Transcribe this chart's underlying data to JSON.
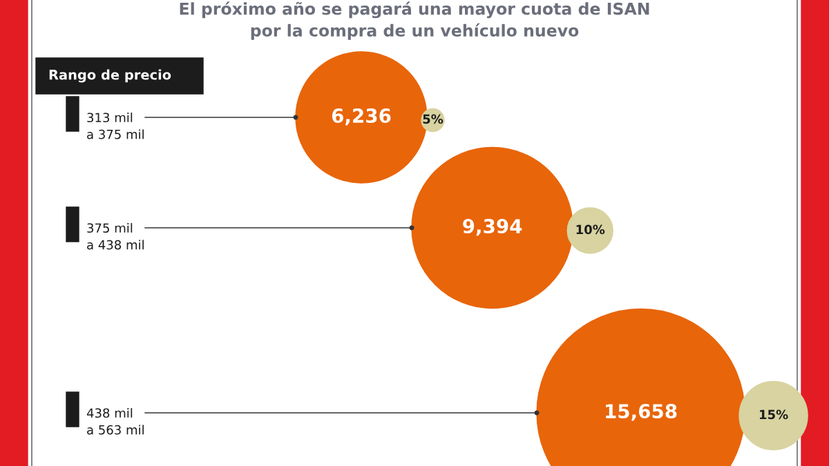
{
  "chart_data": {
    "type": "other",
    "title": "El próximo año se pagará una mayor cuota de ISAN\npor la compra de un vehículo nuevo",
    "ylabel": "Rango de precio",
    "categories": [
      "313 mil\na 375 mil",
      "375 mil\na 438 mil",
      "438 mil\na 563 mil"
    ],
    "series": [
      {
        "color": "#e8650a",
        "values": [
          6236,
          9394,
          15658
        ],
        "value_labels": [
          "6,236",
          "9,394",
          "15,658"
        ]
      },
      {
        "color": "#d8d3a0",
        "values": [
          5,
          10,
          15
        ],
        "value_labels": [
          "5%",
          "10%",
          "15%"
        ]
      }
    ]
  }
}
